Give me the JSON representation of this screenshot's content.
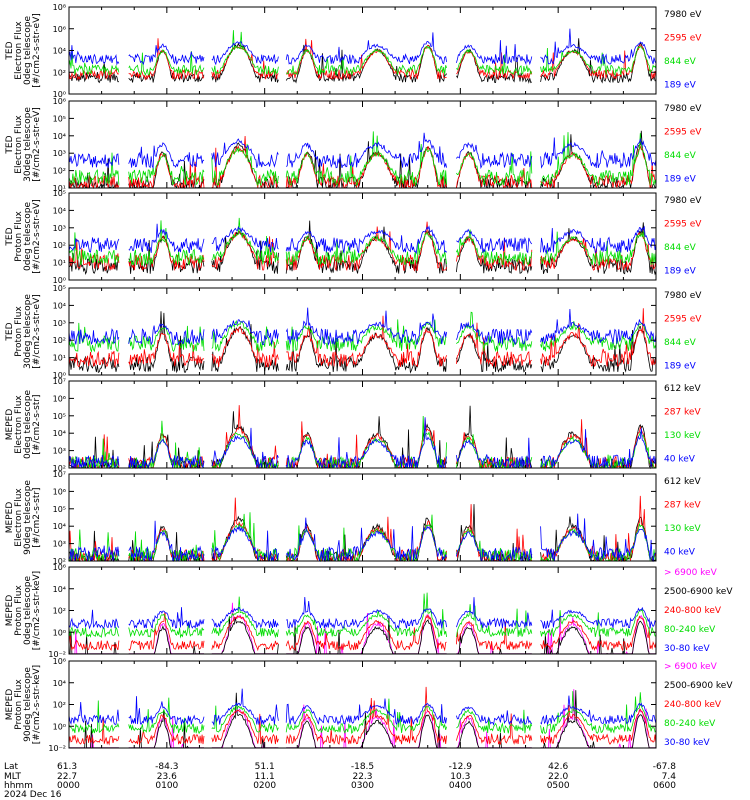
{
  "chart_data": {
    "type": "line",
    "yscale": "log",
    "xlim": [
      0,
      360
    ],
    "panels": [
      {
        "ylabel": [
          "TED",
          "Electron Flux",
          "0deg telescope",
          "[#/cm2-s-str-eV]"
        ],
        "ylim": [
          1,
          100000000
        ],
        "yticks": [
          "10⁸",
          "10⁶",
          "10⁴",
          "10²",
          "10⁰"
        ],
        "yticks_exp": [
          8,
          6,
          4,
          2,
          0
        ],
        "series": [
          {
            "name": "7980 eV",
            "color": "#000000",
            "base": 1.5
          },
          {
            "name": "2595 eV",
            "color": "#ff0000",
            "base": 1.8
          },
          {
            "name": "844 eV",
            "color": "#00dd00",
            "base": 2.2
          },
          {
            "name": "189 eV",
            "color": "#0000ff",
            "base": 3.2
          }
        ]
      },
      {
        "ylabel": [
          "TED",
          "Electron Flux",
          "30deg telescope",
          "[#/cm2-s-str-eV]"
        ],
        "ylim": [
          10,
          1000000
        ],
        "yticks": [
          "10⁶",
          "10⁵",
          "10⁴",
          "10³",
          "10²",
          "10¹"
        ],
        "yticks_exp": [
          6,
          5,
          4,
          3,
          2,
          1
        ],
        "series": [
          {
            "name": "7980 eV",
            "color": "#000000",
            "base": 1.2
          },
          {
            "name": "2595 eV",
            "color": "#ff0000",
            "base": 1.3
          },
          {
            "name": "844 eV",
            "color": "#00dd00",
            "base": 1.6
          },
          {
            "name": "189 eV",
            "color": "#0000ff",
            "base": 2.6
          }
        ]
      },
      {
        "ylabel": [
          "TED",
          "Proton Flux",
          "0deg telescope",
          "[#/cm2-s-str-eV]"
        ],
        "ylim": [
          1,
          100000
        ],
        "yticks": [
          "10⁵",
          "10⁴",
          "10³",
          "10²",
          "10¹",
          "10⁰"
        ],
        "yticks_exp": [
          5,
          4,
          3,
          2,
          1,
          0
        ],
        "series": [
          {
            "name": "7980 eV",
            "color": "#000000",
            "base": 0.8
          },
          {
            "name": "2595 eV",
            "color": "#ff0000",
            "base": 1.0
          },
          {
            "name": "844 eV",
            "color": "#00dd00",
            "base": 1.3
          },
          {
            "name": "189 eV",
            "color": "#0000ff",
            "base": 2.0
          }
        ]
      },
      {
        "ylabel": [
          "TED",
          "Proton Flux",
          "30deg telescope",
          "[#/cm2-s-str-eV]"
        ],
        "ylim": [
          1,
          100000
        ],
        "yticks": [
          "10⁵",
          "10⁴",
          "10³",
          "10²",
          "10¹",
          "10⁰"
        ],
        "yticks_exp": [
          5,
          4,
          3,
          2,
          1,
          0
        ],
        "series": [
          {
            "name": "7980 eV",
            "color": "#000000",
            "base": 0.6
          },
          {
            "name": "2595 eV",
            "color": "#ff0000",
            "base": 0.9
          },
          {
            "name": "844 eV",
            "color": "#00dd00",
            "base": 1.8
          },
          {
            "name": "189 eV",
            "color": "#0000ff",
            "base": 2.2
          }
        ]
      },
      {
        "ylabel": [
          "MEPED",
          "Electron Flux",
          "0deg telescope",
          "[#/cm2-s-str]"
        ],
        "ylim": [
          100,
          10000000
        ],
        "yticks": [
          "10⁷",
          "10⁶",
          "10⁵",
          "10⁴",
          "10³",
          "10²"
        ],
        "yticks_exp": [
          7,
          6,
          5,
          4,
          3,
          2
        ],
        "series": [
          {
            "name": "612 keV",
            "color": "#000000",
            "base": 2.1
          },
          {
            "name": "287 keV",
            "color": "#ff0000",
            "base": 2.2
          },
          {
            "name": "130 keV",
            "color": "#00dd00",
            "base": 2.2
          },
          {
            "name": "40 keV",
            "color": "#0000ff",
            "base": 2.3
          }
        ]
      },
      {
        "ylabel": [
          "MEPED",
          "Electron Flux",
          "90deg telescope",
          "[#/cm2-s-str]"
        ],
        "ylim": [
          100,
          10000000
        ],
        "yticks": [
          "10⁷",
          "10⁶",
          "10⁵",
          "10⁴",
          "10³",
          "10²"
        ],
        "yticks_exp": [
          7,
          6,
          5,
          4,
          3,
          2
        ],
        "series": [
          {
            "name": "612 keV",
            "color": "#000000",
            "base": 2.1
          },
          {
            "name": "287 keV",
            "color": "#ff0000",
            "base": 2.2
          },
          {
            "name": "130 keV",
            "color": "#00dd00",
            "base": 2.3
          },
          {
            "name": "40 keV",
            "color": "#0000ff",
            "base": 2.4
          }
        ]
      },
      {
        "ylabel": [
          "MEPED",
          "Proton Flux",
          "0deg telescope",
          "[#/cm2-s-str-keV]"
        ],
        "ylim": [
          0.01,
          1000000
        ],
        "yticks": [
          "10⁶",
          "10⁴",
          "10²",
          "10⁰",
          "10⁻²"
        ],
        "yticks_exp": [
          6,
          4,
          2,
          0,
          -2
        ],
        "series": [
          {
            "name": "> 6900 keV",
            "color": "#ff00ff",
            "base": -2.5
          },
          {
            "name": "2500-6900 keV",
            "color": "#000000",
            "base": -2.5
          },
          {
            "name": "240-800 keV",
            "color": "#ff0000",
            "base": -1.2
          },
          {
            "name": "80-240 keV",
            "color": "#00dd00",
            "base": 0.0
          },
          {
            "name": "30-80 keV",
            "color": "#0000ff",
            "base": 0.8
          }
        ]
      },
      {
        "ylabel": [
          "MEPED",
          "Proton Flux",
          "90deg telescope",
          "[#/cm2-s-str-keV]"
        ],
        "ylim": [
          0.01,
          1000000
        ],
        "yticks": [
          "10⁶",
          "10⁴",
          "10²",
          "10⁰",
          "10⁻²"
        ],
        "yticks_exp": [
          6,
          4,
          2,
          0,
          -2
        ],
        "series": [
          {
            "name": "> 6900 keV",
            "color": "#ff00ff",
            "base": -2.5
          },
          {
            "name": "2500-6900 keV",
            "color": "#000000",
            "base": -2.5
          },
          {
            "name": "240-800 keV",
            "color": "#ff0000",
            "base": -1.2
          },
          {
            "name": "80-240 keV",
            "color": "#00dd00",
            "base": -0.2
          },
          {
            "name": "30-80 keV",
            "color": "#0000ff",
            "base": 0.6
          }
        ]
      }
    ],
    "x_axis": {
      "row_labels": [
        "Lat",
        "MLT",
        "hhmm"
      ],
      "date": "2024 Dec 16",
      "ticks": [
        {
          "t": 0,
          "lat": "61.3",
          "mlt": "22.7",
          "hhmm": "0000"
        },
        {
          "t": 60,
          "lat": "-84.3",
          "mlt": "23.6",
          "hhmm": "0100"
        },
        {
          "t": 120,
          "lat": "51.1",
          "mlt": "11.1",
          "hhmm": "0200"
        },
        {
          "t": 180,
          "lat": "-18.5",
          "mlt": "22.3",
          "hhmm": "0300"
        },
        {
          "t": 240,
          "lat": "-12.9",
          "mlt": "10.3",
          "hhmm": "0400"
        },
        {
          "t": 300,
          "lat": "42.6",
          "mlt": "22.0",
          "hhmm": "0500"
        },
        {
          "t": 360,
          "lat": "-67.8",
          "mlt": "7.4",
          "hhmm": "0600"
        }
      ]
    }
  }
}
